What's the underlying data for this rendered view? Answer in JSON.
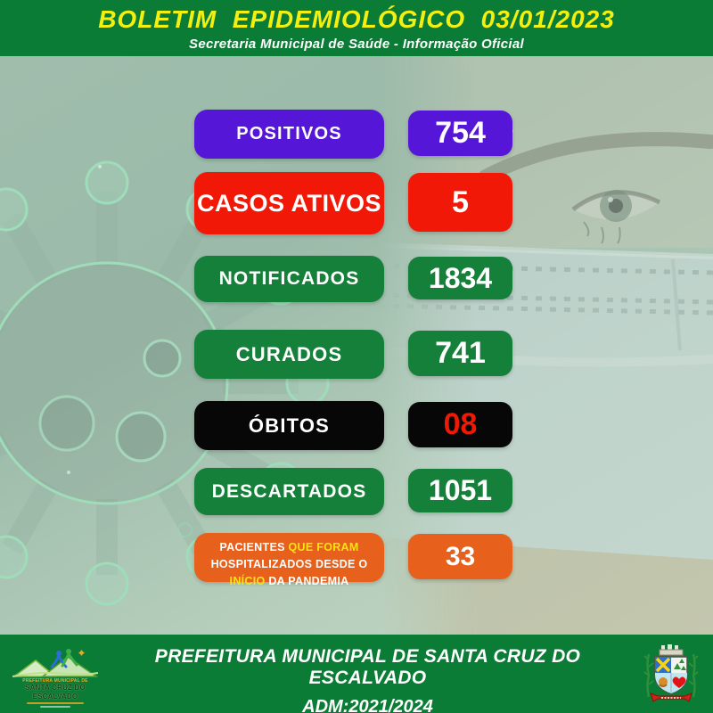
{
  "header": {
    "title": "BOLETIM  EPIDEMIOLÓGICO  03/01/2023",
    "subtitle": "Secretaria Municipal de Saúde - Informação Oficial"
  },
  "colors": {
    "banner_green": "#0a7c35",
    "title_yellow": "#f3ef10",
    "purple": "#5516d8",
    "red": "#f21808",
    "green": "#15803a",
    "black": "#070707",
    "orange": "#e7611c",
    "deaths_value_red": "#ee1a06",
    "highlight_yellow": "#f7e412"
  },
  "stats": [
    {
      "id": "positivos",
      "value": "754",
      "box_color": "#5516d8",
      "value_color": "#ffffff",
      "label_parts": [
        {
          "text": "POSITIVOS",
          "color": "#ffffff"
        }
      ]
    },
    {
      "id": "casos-ativos",
      "value": "5",
      "box_color": "#f21808",
      "value_color": "#ffffff",
      "label_parts": [
        {
          "text": "CASOS ATIVOS",
          "color": "#ffffff"
        }
      ]
    },
    {
      "id": "notificados",
      "value": "1834",
      "box_color": "#15803a",
      "value_color": "#ffffff",
      "label_parts": [
        {
          "text": "NOTIFICADOS",
          "color": "#ffffff"
        }
      ]
    },
    {
      "id": "curados",
      "value": "741",
      "box_color": "#15803a",
      "value_color": "#ffffff",
      "label_parts": [
        {
          "text": "CURADOS",
          "color": "#ffffff"
        }
      ]
    },
    {
      "id": "obitos",
      "value": "08",
      "box_color": "#070707",
      "value_color": "#ee1a06",
      "label_parts": [
        {
          "text": "ÓBITOS",
          "color": "#ffffff"
        }
      ]
    },
    {
      "id": "descartados",
      "value": "1051",
      "box_color": "#15803a",
      "value_color": "#ffffff",
      "label_parts": [
        {
          "text": "DESCARTADOS",
          "color": "#ffffff"
        }
      ]
    },
    {
      "id": "hospitalizados",
      "value": "33",
      "box_color": "#e7611c",
      "value_color": "#ffffff",
      "label_parts": [
        {
          "text": "PACIENTES ",
          "color": "#ffffff"
        },
        {
          "text": "QUE FORAM",
          "color": "#f7e412"
        },
        {
          "text": " HOSPITALIZADOS DESDE O ",
          "color": "#ffffff"
        },
        {
          "text": "INÍCIO",
          "color": "#f7e412"
        },
        {
          "text": " DA PANDEMIA",
          "color": "#ffffff"
        }
      ]
    }
  ],
  "footer": {
    "line1": "PREFEITURA MUNICIPAL DE SANTA CRUZ DO ESCALVADO",
    "line2": "ADM:2021/2024",
    "seal": {
      "top_line": "PREFEITURA MUNICIPAL DE",
      "name": "SANTA CRUZ DO ESCALVADO"
    }
  },
  "icons": {
    "virus": "virus-illustration",
    "photo": "masked-face-photo",
    "seal": "city-logo",
    "crest": "coat-of-arms"
  }
}
